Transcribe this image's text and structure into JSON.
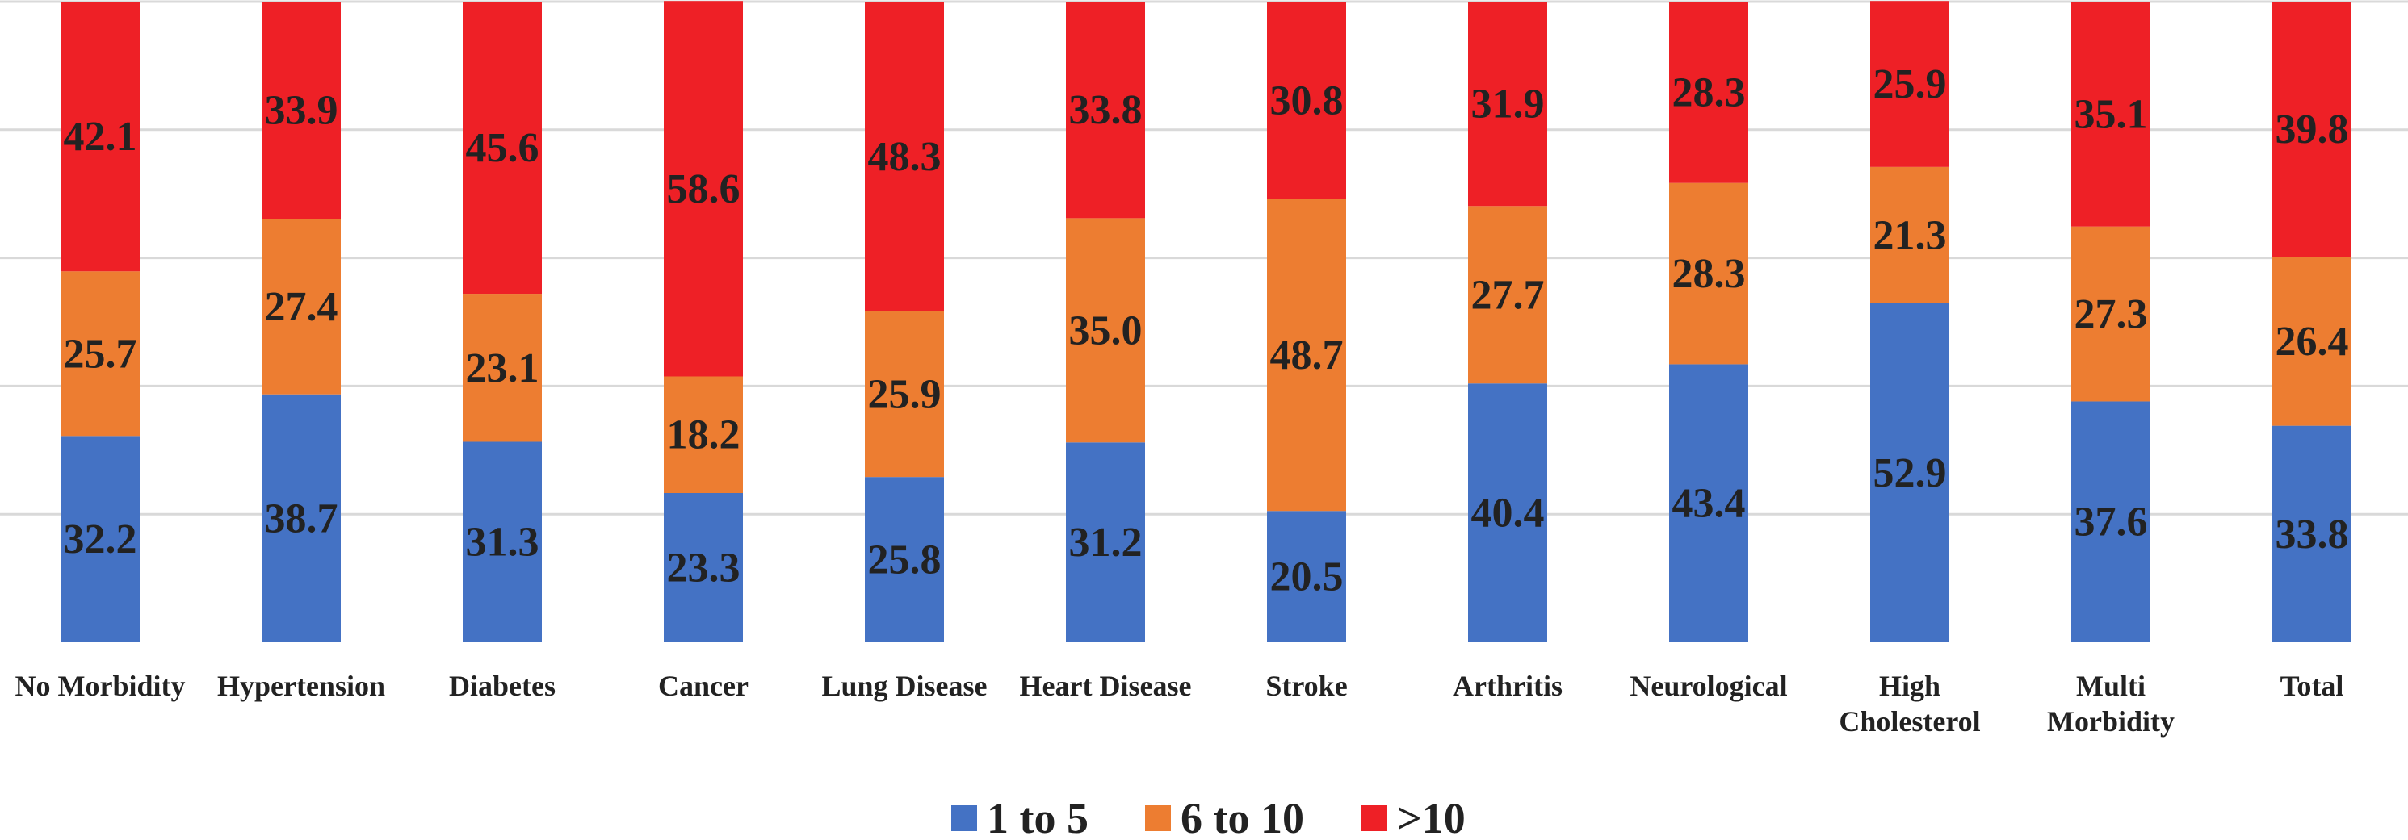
{
  "chart_data": {
    "type": "bar",
    "stacked": true,
    "title": "",
    "xlabel": "",
    "ylabel": "",
    "ylim": [
      0,
      100
    ],
    "grid": true,
    "legend_position": "bottom",
    "categories": [
      "No Morbidity",
      "Hypertension",
      "Diabetes",
      "Cancer",
      "Lung Disease",
      "Heart Disease",
      "Stroke",
      "Arthritis",
      "Neurological",
      "High Cholesterol",
      "Multi Morbidity",
      "Total"
    ],
    "series": [
      {
        "name": "1 to 5",
        "color": "#4472C4",
        "values": [
          32.2,
          38.7,
          31.3,
          23.3,
          25.8,
          31.2,
          20.5,
          40.4,
          43.4,
          52.9,
          37.6,
          33.8
        ]
      },
      {
        "name": "6 to 10",
        "color": "#ED7D31",
        "values": [
          25.7,
          27.4,
          23.1,
          18.2,
          25.9,
          35.0,
          48.7,
          27.7,
          28.3,
          21.3,
          27.3,
          26.4
        ]
      },
      {
        "name": ">10",
        "color": "#EE2026",
        "values": [
          42.1,
          33.9,
          45.6,
          58.6,
          48.3,
          33.8,
          30.8,
          31.9,
          28.3,
          25.9,
          35.1,
          39.8
        ]
      }
    ]
  }
}
